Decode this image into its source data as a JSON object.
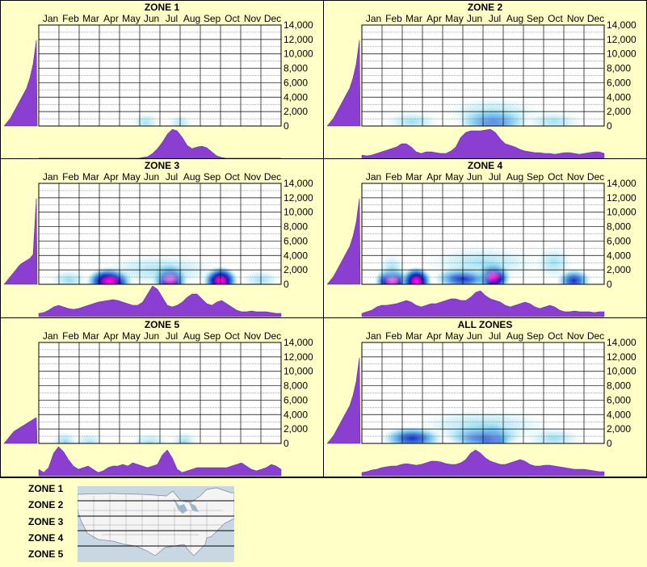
{
  "months": [
    "Jan",
    "Feb",
    "Mar",
    "Apr",
    "May",
    "Jun",
    "Jul",
    "Aug",
    "Sep",
    "Oct",
    "Nov",
    "Dec"
  ],
  "y_ticks": [
    "14,000",
    "12,000",
    "10,000",
    "8,000",
    "6,000",
    "4,000",
    "2,000",
    "0"
  ],
  "legend_zones": [
    "ZONE 1",
    "ZONE 2",
    "ZONE 3",
    "ZONE 4",
    "ZONE 5"
  ],
  "chart_data": [
    {
      "type": "heatmap",
      "title": "ZONE 1",
      "ylim": [
        0,
        14000
      ],
      "x": [
        "Jan",
        "Feb",
        "Mar",
        "Apr",
        "May",
        "Jun",
        "Jul",
        "Aug",
        "Sep",
        "Oct",
        "Nov",
        "Dec"
      ],
      "blobs": [
        {
          "month": 5.3,
          "elev": 500,
          "intensity": 0.25,
          "spread": 0.7
        },
        {
          "month": 7.0,
          "elev": 400,
          "intensity": 0.12,
          "spread": 0.6
        }
      ],
      "elevation_profile": [
        0,
        4,
        8,
        14,
        20,
        26,
        32,
        38,
        48,
        62,
        86
      ],
      "monthly_profile": [
        0,
        0,
        0,
        0,
        0,
        0,
        0,
        0,
        0,
        0,
        0,
        0,
        0,
        0,
        0,
        0,
        0,
        0,
        0,
        0,
        0,
        1,
        2,
        6,
        12,
        20,
        30,
        36,
        34,
        26,
        16,
        12,
        14,
        15,
        13,
        8,
        3,
        1,
        0,
        0,
        0,
        0,
        0,
        0,
        0,
        0,
        0,
        0,
        0,
        0
      ]
    },
    {
      "type": "heatmap",
      "title": "ZONE 2",
      "ylim": [
        0,
        14000
      ],
      "x": [
        "Jan",
        "Feb",
        "Mar",
        "Apr",
        "May",
        "Jun",
        "Jul",
        "Aug",
        "Sep",
        "Oct",
        "Nov",
        "Dec"
      ],
      "blobs": [
        {
          "month": 2.5,
          "elev": 600,
          "intensity": 0.35,
          "spread": 1.4
        },
        {
          "month": 6.5,
          "elev": 700,
          "intensity": 0.55,
          "spread": 1.8
        },
        {
          "month": 9.5,
          "elev": 600,
          "intensity": 0.3,
          "spread": 1.5
        },
        {
          "month": 6.5,
          "elev": 1800,
          "intensity": 0.2,
          "spread": 2.5
        }
      ],
      "elevation_profile": [
        0,
        4,
        8,
        14,
        20,
        26,
        32,
        38,
        48,
        62,
        86
      ],
      "monthly_profile": [
        4,
        3,
        4,
        6,
        8,
        10,
        12,
        14,
        18,
        18,
        14,
        8,
        6,
        8,
        8,
        7,
        6,
        6,
        9,
        14,
        26,
        32,
        34,
        34,
        34,
        35,
        36,
        32,
        24,
        18,
        16,
        14,
        11,
        9,
        8,
        7,
        7,
        6,
        6,
        5,
        6,
        7,
        7,
        6,
        5,
        6,
        7,
        8,
        8,
        6
      ]
    },
    {
      "type": "heatmap",
      "title": "ZONE 3",
      "ylim": [
        0,
        14000
      ],
      "x": [
        "Jan",
        "Feb",
        "Mar",
        "Apr",
        "May",
        "Jun",
        "Jul",
        "Aug",
        "Sep",
        "Oct",
        "Nov",
        "Dec"
      ],
      "blobs": [
        {
          "month": 3.5,
          "elev": 400,
          "intensity": 0.85,
          "spread": 1.2
        },
        {
          "month": 6.5,
          "elev": 700,
          "intensity": 1.0,
          "spread": 0.9
        },
        {
          "month": 9.0,
          "elev": 500,
          "intensity": 0.85,
          "spread": 0.9
        },
        {
          "month": 6.0,
          "elev": 2000,
          "intensity": 0.25,
          "spread": 3.0
        },
        {
          "month": 1.5,
          "elev": 600,
          "intensity": 0.4,
          "spread": 1.0
        },
        {
          "month": 11,
          "elev": 600,
          "intensity": 0.3,
          "spread": 1.0
        }
      ],
      "elevation_profile": [
        0,
        4,
        8,
        12,
        16,
        20,
        22,
        24,
        26,
        30,
        86
      ],
      "monthly_profile": [
        4,
        5,
        8,
        12,
        14,
        12,
        10,
        9,
        10,
        12,
        14,
        16,
        18,
        19,
        20,
        21,
        20,
        18,
        16,
        14,
        14,
        18,
        28,
        38,
        34,
        24,
        14,
        12,
        14,
        18,
        24,
        28,
        28,
        22,
        16,
        14,
        18,
        20,
        16,
        12,
        8,
        6,
        6,
        7,
        6,
        6,
        6,
        5,
        4,
        4
      ]
    },
    {
      "type": "heatmap",
      "title": "ZONE 4",
      "ylim": [
        0,
        14000
      ],
      "x": [
        "Jan",
        "Feb",
        "Mar",
        "Apr",
        "May",
        "Jun",
        "Jul",
        "Aug",
        "Sep",
        "Oct",
        "Nov",
        "Dec"
      ],
      "blobs": [
        {
          "month": 1.5,
          "elev": 400,
          "intensity": 0.85,
          "spread": 0.9
        },
        {
          "month": 2.7,
          "elev": 400,
          "intensity": 0.9,
          "spread": 0.8
        },
        {
          "month": 6.5,
          "elev": 1000,
          "intensity": 1.0,
          "spread": 0.9
        },
        {
          "month": 5.0,
          "elev": 800,
          "intensity": 0.6,
          "spread": 1.5
        },
        {
          "month": 10.5,
          "elev": 500,
          "intensity": 0.55,
          "spread": 0.9
        },
        {
          "month": 6.0,
          "elev": 3000,
          "intensity": 0.3,
          "spread": 3.0
        },
        {
          "month": 1.5,
          "elev": 2000,
          "intensity": 0.35,
          "spread": 0.7
        },
        {
          "month": 9.5,
          "elev": 3000,
          "intensity": 0.3,
          "spread": 1.0
        }
      ],
      "elevation_profile": [
        0,
        4,
        8,
        14,
        20,
        26,
        32,
        38,
        48,
        62,
        86
      ],
      "monthly_profile": [
        4,
        6,
        8,
        12,
        14,
        14,
        15,
        16,
        18,
        20,
        18,
        14,
        12,
        14,
        16,
        16,
        18,
        20,
        22,
        22,
        20,
        20,
        24,
        30,
        32,
        26,
        22,
        20,
        18,
        14,
        12,
        14,
        16,
        18,
        16,
        12,
        10,
        12,
        14,
        12,
        8,
        6,
        6,
        7,
        6,
        6,
        6,
        5,
        6,
        6
      ]
    },
    {
      "type": "heatmap",
      "title": "ZONE 5",
      "ylim": [
        0,
        14000
      ],
      "x": [
        "Jan",
        "Feb",
        "Mar",
        "Apr",
        "May",
        "Jun",
        "Jul",
        "Aug",
        "Sep",
        "Oct",
        "Nov",
        "Dec"
      ],
      "blobs": [
        {
          "month": 1.3,
          "elev": 200,
          "intensity": 0.45,
          "spread": 0.7
        },
        {
          "month": 2.5,
          "elev": 150,
          "intensity": 0.2,
          "spread": 0.8
        },
        {
          "month": 5.5,
          "elev": 150,
          "intensity": 0.2,
          "spread": 1.0
        },
        {
          "month": 7.2,
          "elev": 200,
          "intensity": 0.4,
          "spread": 0.7
        }
      ],
      "elevation_profile": [
        0,
        4,
        8,
        12,
        14,
        16,
        18,
        20,
        22,
        24,
        26
      ],
      "monthly_profile": [
        8,
        4,
        10,
        28,
        36,
        30,
        20,
        12,
        8,
        10,
        12,
        8,
        4,
        6,
        10,
        12,
        12,
        14,
        12,
        16,
        14,
        12,
        10,
        12,
        14,
        26,
        32,
        22,
        8,
        4,
        6,
        8,
        10,
        10,
        10,
        10,
        10,
        10,
        10,
        12,
        14,
        16,
        12,
        8,
        6,
        8,
        10,
        14,
        12,
        8
      ]
    },
    {
      "type": "heatmap",
      "title": "ALL ZONES",
      "ylim": [
        0,
        14000
      ],
      "x": [
        "Jan",
        "Feb",
        "Mar",
        "Apr",
        "May",
        "Jun",
        "Jul",
        "Aug",
        "Sep",
        "Oct",
        "Nov",
        "Dec"
      ],
      "blobs": [
        {
          "month": 2.5,
          "elev": 700,
          "intensity": 0.55,
          "spread": 1.6
        },
        {
          "month": 6.5,
          "elev": 600,
          "intensity": 1.0,
          "spread": 0.8
        },
        {
          "month": 6.0,
          "elev": 1000,
          "intensity": 0.55,
          "spread": 2.0
        },
        {
          "month": 9.5,
          "elev": 700,
          "intensity": 0.4,
          "spread": 1.5
        },
        {
          "month": 6.0,
          "elev": 2500,
          "intensity": 0.3,
          "spread": 3.5
        }
      ],
      "elevation_profile": [
        0,
        4,
        8,
        14,
        20,
        26,
        32,
        38,
        48,
        62,
        86
      ],
      "monthly_profile": [
        4,
        5,
        7,
        8,
        10,
        11,
        12,
        12,
        14,
        15,
        14,
        13,
        14,
        16,
        18,
        18,
        17,
        15,
        14,
        14,
        16,
        20,
        28,
        32,
        28,
        22,
        18,
        16,
        14,
        14,
        16,
        18,
        20,
        18,
        14,
        12,
        12,
        13,
        13,
        12,
        11,
        10,
        9,
        8,
        8,
        8,
        7,
        6,
        5,
        5
      ]
    }
  ]
}
